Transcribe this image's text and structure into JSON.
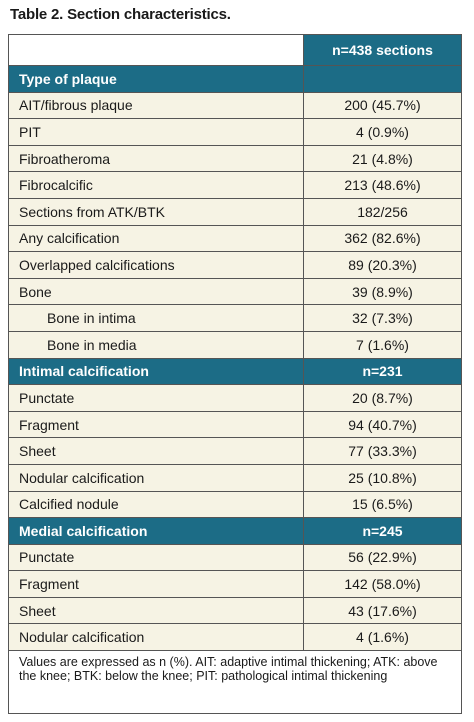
{
  "title": "Table 2. Section characteristics.",
  "header": {
    "col0": "",
    "col1": "n=438 sections"
  },
  "sections": [
    {
      "label": "Type of plaque",
      "value": "",
      "rows": [
        {
          "label": "AIT/fibrous plaque",
          "value": "200 (45.7%)",
          "indent": false
        },
        {
          "label": "PIT",
          "value": "4 (0.9%)",
          "indent": false
        },
        {
          "label": "Fibroatheroma",
          "value": "21 (4.8%)",
          "indent": false
        },
        {
          "label": "Fibrocalcific",
          "value": "213 (48.6%)",
          "indent": false
        },
        {
          "label": "Sections from ATK/BTK",
          "value": "182/256",
          "indent": false
        },
        {
          "label": "Any calcification",
          "value": "362 (82.6%)",
          "indent": false
        },
        {
          "label": "Overlapped calcifications",
          "value": "89 (20.3%)",
          "indent": false
        },
        {
          "label": "Bone",
          "value": "39 (8.9%)",
          "indent": false
        },
        {
          "label": "Bone in intima",
          "value": "32 (7.3%)",
          "indent": true
        },
        {
          "label": "Bone in media",
          "value": "7 (1.6%)",
          "indent": true
        }
      ]
    },
    {
      "label": "Intimal calcification",
      "value": "n=231",
      "rows": [
        {
          "label": "Punctate",
          "value": "20 (8.7%)",
          "indent": false
        },
        {
          "label": "Fragment",
          "value": "94 (40.7%)",
          "indent": false
        },
        {
          "label": "Sheet",
          "value": "77 (33.3%)",
          "indent": false
        },
        {
          "label": "Nodular calcification",
          "value": "25 (10.8%)",
          "indent": false
        },
        {
          "label": "Calcified nodule",
          "value": "15 (6.5%)",
          "indent": false
        }
      ]
    },
    {
      "label": "Medial calcification",
      "value": "n=245",
      "rows": [
        {
          "label": "Punctate",
          "value": "56 (22.9%)",
          "indent": false
        },
        {
          "label": "Fragment",
          "value": "142 (58.0%)",
          "indent": false
        },
        {
          "label": "Sheet",
          "value": "43 (17.6%)",
          "indent": false
        },
        {
          "label": "Nodular calcification",
          "value": "4 (1.6%)",
          "indent": false
        }
      ]
    }
  ],
  "footnote": "Values are expressed as n (%). AIT: adaptive intimal thickening; ATK: above the knee; BTK: below the knee; PIT: pathological intimal thickening",
  "colors": {
    "header_bg": "#1c6c86",
    "row_bg": "#f6f3e4",
    "border": "#555555"
  }
}
